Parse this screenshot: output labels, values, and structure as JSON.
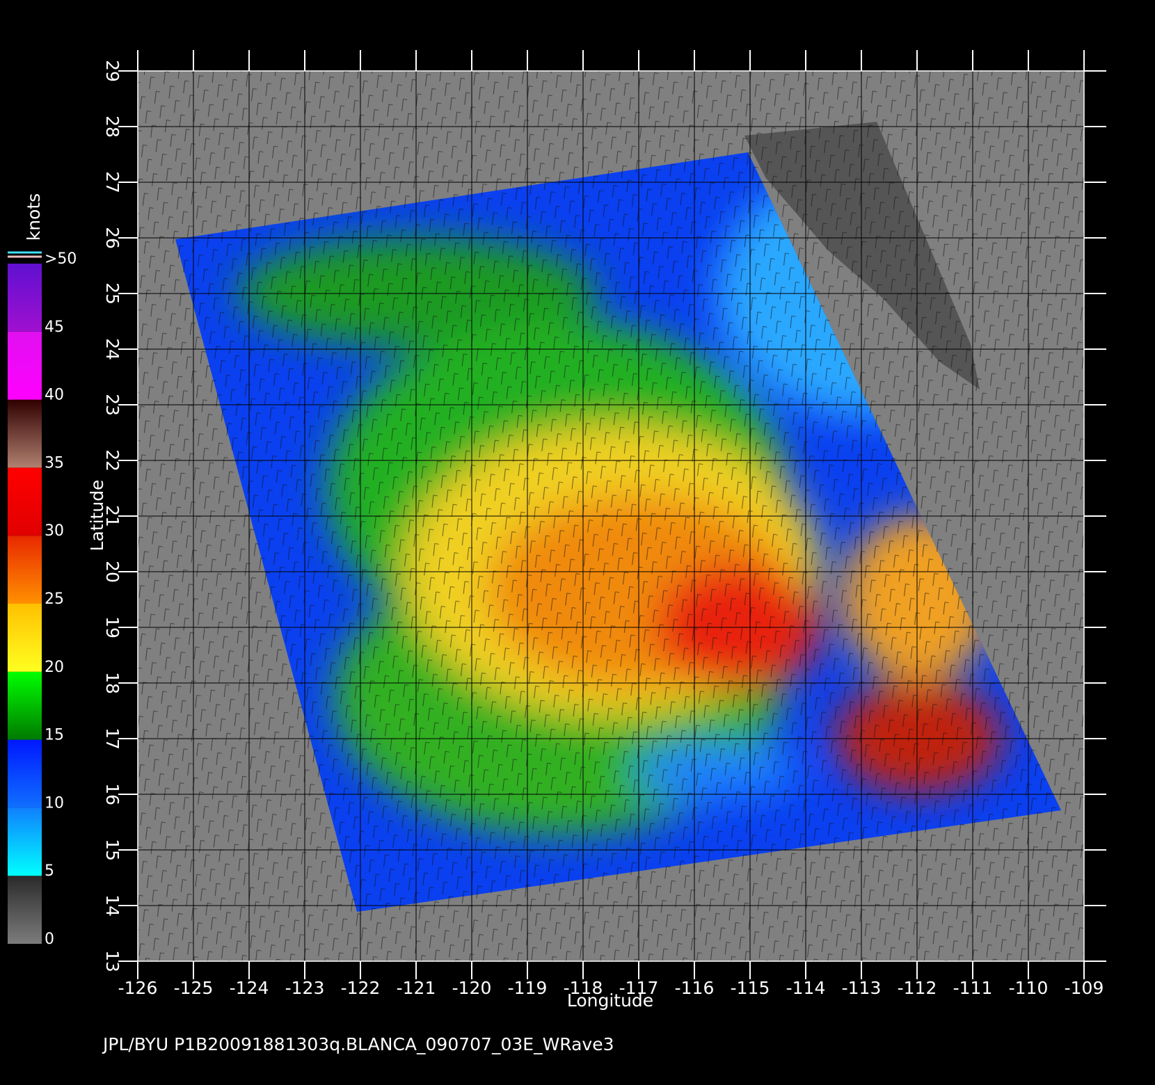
{
  "chart_data": {
    "type": "map",
    "x_label": "Longitude",
    "y_label": "Latitude",
    "footer": "JPL/BYU  P1B20091881303q.BLANCA_090707_03E_WRave3",
    "xlim": [
      -126,
      -109
    ],
    "ylim": [
      13,
      29
    ],
    "xticks": [
      -126,
      -125,
      -124,
      -123,
      -122,
      -121,
      -120,
      -119,
      -118,
      -117,
      -116,
      -115,
      -114,
      -113,
      -112,
      -111,
      -110,
      -109
    ],
    "yticks": [
      13,
      14,
      15,
      16,
      17,
      18,
      19,
      20,
      21,
      22,
      23,
      24,
      25,
      26,
      27,
      28,
      29
    ],
    "grid": true,
    "colorbar": {
      "title": "knots",
      "lim": [
        0,
        50
      ],
      "ticks": [
        0,
        5,
        10,
        15,
        20,
        25,
        30,
        35,
        40,
        45,
        {
          "value": 50,
          "label": ">50"
        }
      ],
      "band_colors": [
        [
          "#7c7c7c",
          "#2a2a2a"
        ],
        [
          "#00ffff",
          "#1080ff"
        ],
        [
          "#1070ff",
          "#0018ff"
        ],
        [
          "#007a00",
          "#00ff00"
        ],
        [
          "#ffff20",
          "#ffc000"
        ],
        [
          "#ff9000",
          "#e82800"
        ],
        [
          "#e00000",
          "#ff0000"
        ],
        [
          "#b08070",
          "#300000"
        ],
        [
          "#ff00ff",
          "#e010f0"
        ],
        [
          "#a010d0",
          "#6010d0"
        ]
      ]
    }
  }
}
